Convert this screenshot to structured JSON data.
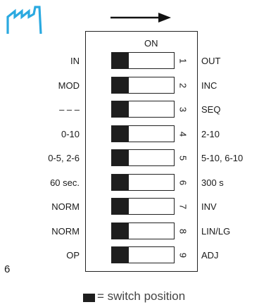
{
  "header": {
    "icon": "factory-icon",
    "direction_icon": "arrow-right-icon",
    "accent_color": "#2aa9e0"
  },
  "on_label": "ON",
  "switches": [
    {
      "number": "1",
      "left": "IN",
      "right": "OUT",
      "position": "left"
    },
    {
      "number": "2",
      "left": "MOD",
      "right": "INC",
      "position": "left"
    },
    {
      "number": "3",
      "left": "– – –",
      "right": "SEQ",
      "position": "left"
    },
    {
      "number": "4",
      "left": "0-10",
      "right": "2-10",
      "position": "left"
    },
    {
      "number": "5",
      "left": "0-5, 2-6",
      "right": "5-10, 6-10",
      "position": "left"
    },
    {
      "number": "6",
      "left": "60 sec.",
      "right": "300 s",
      "position": "left"
    },
    {
      "number": "7",
      "left": "NORM",
      "right": "INV",
      "position": "left"
    },
    {
      "number": "8",
      "left": "NORM",
      "right": "LIN/LG",
      "position": "left"
    },
    {
      "number": "9",
      "left": "OP",
      "right": "ADJ",
      "position": "left"
    }
  ],
  "page_number": "6",
  "legend": {
    "text": "= switch position"
  }
}
